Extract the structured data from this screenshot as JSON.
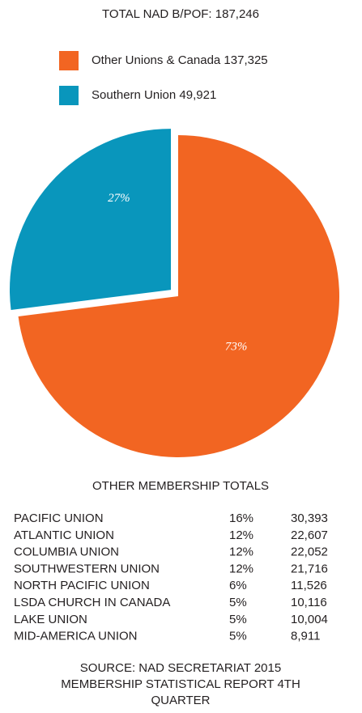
{
  "chart_data": {
    "type": "pie",
    "title": "TOTAL NAD B/POF: 187,246",
    "categories": [
      "Other Unions & Canada 137,325",
      "Southern Union 49,921"
    ],
    "values": [
      73,
      27
    ],
    "value_labels": [
      "73%",
      "27%"
    ],
    "colors": [
      "#f26522",
      "#0996bc"
    ],
    "explode": [
      false,
      true
    ]
  },
  "table": {
    "title": "OTHER MEMBERSHIP TOTALS",
    "rows": [
      [
        "PACIFIC UNION",
        "16%",
        "30,393"
      ],
      [
        "ATLANTIC UNION",
        "12%",
        "22,607"
      ],
      [
        "COLUMBIA UNION",
        "12%",
        "22,052"
      ],
      [
        "SOUTHWESTERN UNION",
        "12%",
        "21,716"
      ],
      [
        "NORTH PACIFIC UNION",
        "6%",
        "11,526"
      ],
      [
        "LSDA CHURCH IN CANADA",
        "5%",
        "10,116"
      ],
      [
        "LAKE UNION",
        "5%",
        "10,004"
      ],
      [
        "MID-AMERICA UNION",
        "5%",
        "8,911"
      ]
    ]
  },
  "source": [
    "SOURCE: NAD SECRETARIAT 2015",
    "MEMBERSHIP STATISTICAL REPORT 4TH",
    "QUARTER"
  ]
}
